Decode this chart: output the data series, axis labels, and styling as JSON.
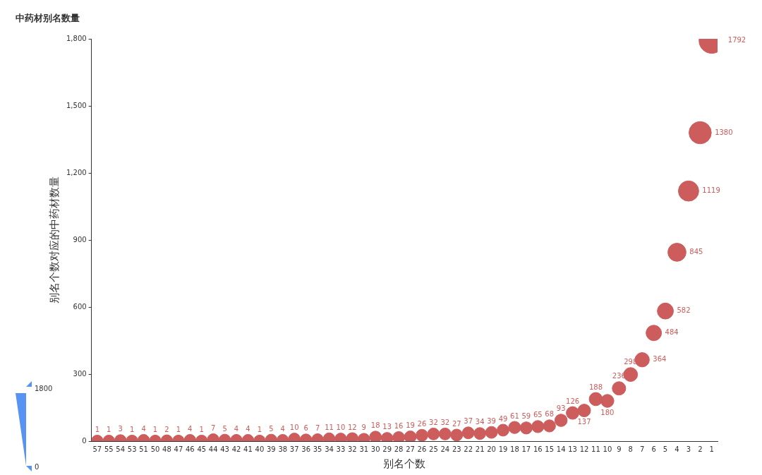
{
  "chart_data": {
    "type": "bubble",
    "title": "中药材别名数量",
    "xlabel": "别名个数",
    "ylabel": "别名个数对应的中药材数量",
    "categories": [
      "57",
      "55",
      "54",
      "53",
      "51",
      "50",
      "48",
      "47",
      "46",
      "45",
      "44",
      "43",
      "42",
      "41",
      "40",
      "39",
      "38",
      "37",
      "36",
      "35",
      "34",
      "33",
      "32",
      "31",
      "30",
      "29",
      "28",
      "27",
      "26",
      "25",
      "24",
      "23",
      "22",
      "21",
      "20",
      "19",
      "18",
      "17",
      "16",
      "15",
      "14",
      "13",
      "12",
      "11",
      "10",
      "9",
      "8",
      "7",
      "6",
      "5",
      "4",
      "3",
      "2",
      "1"
    ],
    "values": [
      1,
      1,
      3,
      1,
      4,
      1,
      2,
      1,
      4,
      1,
      7,
      5,
      4,
      4,
      1,
      5,
      4,
      10,
      6,
      7,
      11,
      10,
      12,
      9,
      18,
      13,
      16,
      19,
      26,
      32,
      32,
      27,
      37,
      34,
      39,
      49,
      61,
      59,
      65,
      68,
      93,
      126,
      137,
      188,
      180,
      236,
      298,
      364,
      484,
      582,
      845,
      1119,
      1380,
      1792
    ],
    "sizes": [
      0.21,
      0.21,
      0.21,
      0.21,
      0.21,
      0.21,
      0.21,
      0.21,
      0.21,
      0.21,
      0.21,
      0.21,
      0.21,
      0.21,
      0.21,
      0.21,
      0.21,
      0.21,
      0.21,
      0.21,
      0.21,
      0.21,
      0.21,
      0.21,
      0.22,
      0.21,
      0.22,
      0.22,
      0.22,
      0.22,
      0.22,
      0.22,
      0.22,
      0.22,
      0.22,
      0.22,
      0.23,
      0.23,
      0.23,
      0.23,
      0.24,
      0.25,
      0.25,
      0.27,
      0.26,
      0.28,
      0.3,
      0.32,
      0.37,
      0.4,
      0.51,
      0.64,
      0.77,
      1
    ],
    "annotations": [
      "1800",
      "0"
    ],
    "color": "#cd5c5c",
    "data_labels": true,
    "grid": false,
    "legend": false,
    "marker": "circle",
    "ylim": [
      0,
      1800
    ],
    "yticks": [
      0,
      300,
      600,
      900,
      {
        "value": 1200,
        "label": "1,200"
      },
      {
        "value": 1500,
        "label": "1,500"
      },
      {
        "value": 1800,
        "label": "1,800"
      }
    ]
  }
}
